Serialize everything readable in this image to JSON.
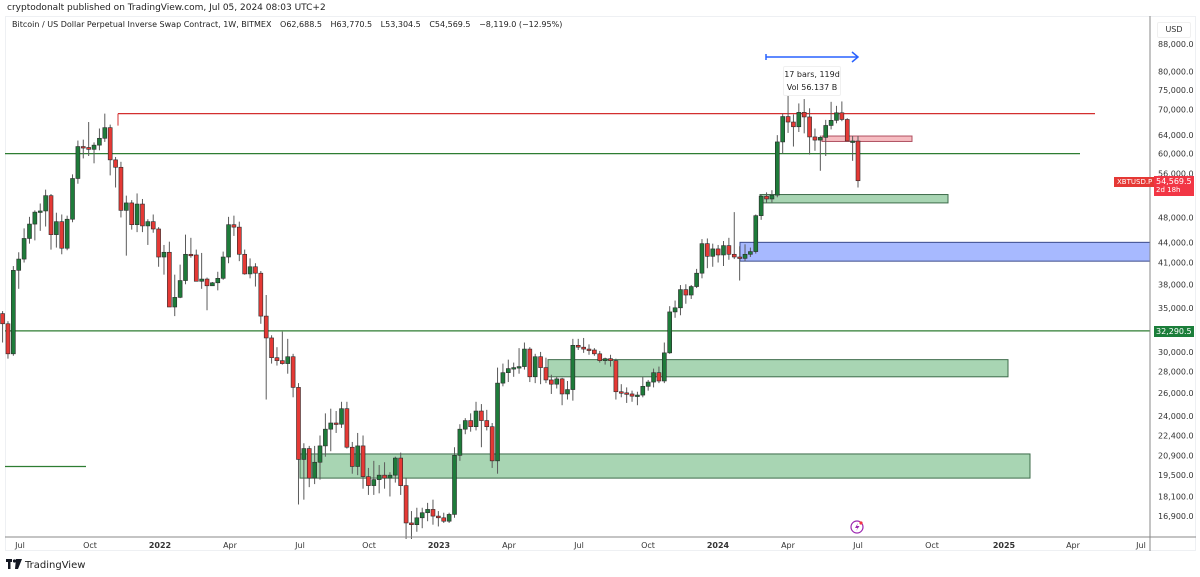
{
  "header": {
    "publish_line": "cryptodonalt published on TradingView.com, Jul 05, 2024 08:03 UTC+2"
  },
  "legend": {
    "title": "Bitcoin / US Dollar Perpetual Inverse Swap Contract, 1W, BITMEX",
    "open": "O62,688.5",
    "high": "H63,770.5",
    "low": "L53,304.5",
    "close": "C54,569.5",
    "change": "−8,119.0 (−12.95%)"
  },
  "price_axis": {
    "currency": "USD",
    "labels": [
      "88,000.0",
      "80,000.0",
      "75,000.0",
      "70,000.0",
      "64,000.0",
      "60,000.0",
      "56,000.0",
      "48,000.0",
      "44,000.0",
      "41,000.0",
      "38,000.0",
      "35,000.0",
      "30,000.0",
      "28,000.0",
      "26,000.0",
      "24,000.0",
      "22,400.0",
      "20,900.0",
      "19,500.0",
      "18,100.0",
      "16,900.0"
    ],
    "values": [
      88000,
      80000,
      75000,
      70000,
      64000,
      60000,
      56000,
      48000,
      44000,
      41000,
      38000,
      35000,
      30000,
      28000,
      26000,
      24000,
      22400,
      20900,
      19500,
      18100,
      16900
    ]
  },
  "time_axis": {
    "labels": [
      {
        "text": "Jul",
        "x": 20,
        "bold": false
      },
      {
        "text": "Oct",
        "x": 90,
        "bold": false
      },
      {
        "text": "2022",
        "x": 160,
        "bold": true
      },
      {
        "text": "Apr",
        "x": 230,
        "bold": false
      },
      {
        "text": "Jul",
        "x": 300,
        "bold": false
      },
      {
        "text": "Oct",
        "x": 369,
        "bold": false
      },
      {
        "text": "2023",
        "x": 439,
        "bold": true
      },
      {
        "text": "Apr",
        "x": 509,
        "bold": false
      },
      {
        "text": "Jul",
        "x": 579,
        "bold": false
      },
      {
        "text": "Oct",
        "x": 648,
        "bold": false
      },
      {
        "text": "2024",
        "x": 718,
        "bold": true
      },
      {
        "text": "Apr",
        "x": 788,
        "bold": false
      },
      {
        "text": "Jul",
        "x": 858,
        "bold": false
      },
      {
        "text": "Oct",
        "x": 932,
        "bold": false
      },
      {
        "text": "2025",
        "x": 1004,
        "bold": true
      },
      {
        "text": "Apr",
        "x": 1073,
        "bold": false
      },
      {
        "text": "Jul",
        "x": 1141,
        "bold": false
      }
    ]
  },
  "tags": {
    "symbol": "XBTUSD.P",
    "last_price": "54,569.5",
    "countdown": "2d 18h",
    "level_price": "32,290.5"
  },
  "measure_tooltip": {
    "line1": "17 bars, 119d",
    "line2": "Vol 56.137 B"
  },
  "brand": {
    "name": "TradingView"
  },
  "colors": {
    "up": "#1e7b3a",
    "down": "#e53935",
    "wick": "#555555",
    "resistance_line": "#d32f2f",
    "support_line": "#2e7d32",
    "green_zone": "#a5d6b0",
    "blue_zone": "#a7b9ff",
    "pink_zone": "#f4b6bb",
    "arrow": "#2962ff"
  },
  "chart_data": {
    "type": "candlestick",
    "title": "Bitcoin / US Dollar Perpetual Inverse Swap Contract, 1W, BITMEX",
    "xlabel": "",
    "ylabel": "USD",
    "y_scale": "log",
    "ylim": [
      16000,
      92000
    ],
    "timeframe": "1W",
    "x_start": "2021-06-28",
    "last_candle": {
      "open": 62688.5,
      "high": 63770.5,
      "low": 53304.5,
      "close": 54569.5
    },
    "candles": [
      [
        34500,
        36600,
        31800,
        35500
      ],
      [
        35500,
        35900,
        32700,
        34300
      ],
      [
        34300,
        34600,
        31000,
        33100
      ],
      [
        33100,
        33400,
        29300,
        29800
      ],
      [
        29800,
        40500,
        29600,
        39900
      ],
      [
        39900,
        42500,
        37400,
        41500
      ],
      [
        41500,
        46200,
        41000,
        44600
      ],
      [
        44600,
        48100,
        43800,
        46900
      ],
      [
        46900,
        49200,
        44300,
        48900
      ],
      [
        48900,
        50400,
        45800,
        49100
      ],
      [
        49100,
        52900,
        46500,
        51800
      ],
      [
        51800,
        52100,
        42900,
        45200
      ],
      [
        45200,
        48800,
        43200,
        47300
      ],
      [
        47300,
        48500,
        42200,
        43100
      ],
      [
        43100,
        48300,
        42800,
        47700
      ],
      [
        47700,
        55800,
        47200,
        55000
      ],
      [
        55000,
        62800,
        54000,
        61500
      ],
      [
        61500,
        63000,
        59000,
        61300
      ],
      [
        61300,
        67000,
        59500,
        60900
      ],
      [
        60900,
        62400,
        58000,
        61800
      ],
      [
        61800,
        65500,
        60700,
        63300
      ],
      [
        63300,
        69000,
        62500,
        65700
      ],
      [
        65700,
        66400,
        55600,
        58700
      ],
      [
        58700,
        59300,
        53300,
        57200
      ],
      [
        57200,
        58300,
        48000,
        49200
      ],
      [
        49200,
        51800,
        42000,
        50500
      ],
      [
        50500,
        51000,
        46000,
        46800
      ],
      [
        46800,
        52200,
        45600,
        50300
      ],
      [
        50300,
        51200,
        45600,
        46600
      ],
      [
        46600,
        47700,
        43600,
        47300
      ],
      [
        47300,
        48500,
        45500,
        46100
      ],
      [
        46100,
        46400,
        40400,
        41800
      ],
      [
        41800,
        43600,
        39300,
        42500
      ],
      [
        42500,
        44100,
        35600,
        35100
      ],
      [
        35100,
        39300,
        34000,
        36300
      ],
      [
        36300,
        40700,
        36200,
        38500
      ],
      [
        38500,
        45200,
        38000,
        42200
      ],
      [
        42200,
        44700,
        41700,
        42100
      ],
      [
        42100,
        42900,
        40000,
        38400
      ],
      [
        38400,
        42400,
        37400,
        38700
      ],
      [
        38700,
        38900,
        34700,
        37800
      ],
      [
        37800,
        38300,
        38000,
        38200
      ],
      [
        38200,
        39700,
        37200,
        38800
      ],
      [
        38800,
        42600,
        38600,
        41800
      ],
      [
        41800,
        48100,
        40900,
        46800
      ],
      [
        46800,
        48300,
        45000,
        46400
      ],
      [
        46400,
        47300,
        41200,
        42200
      ],
      [
        42200,
        42900,
        39300,
        39400
      ],
      [
        39400,
        41600,
        38800,
        40400
      ],
      [
        40400,
        40900,
        37700,
        39500
      ],
      [
        39500,
        39800,
        33100,
        34000
      ],
      [
        34000,
        36600,
        25400,
        31500
      ],
      [
        31500,
        31800,
        28800,
        29400
      ],
      [
        29400,
        30500,
        28600,
        29100
      ],
      [
        29100,
        32200,
        28700,
        28800
      ],
      [
        28800,
        31400,
        27800,
        29500
      ],
      [
        29500,
        29800,
        25600,
        26500
      ],
      [
        26500,
        26900,
        17600,
        20600
      ],
      [
        20600,
        21800,
        17900,
        21400
      ],
      [
        21400,
        21600,
        18700,
        19300
      ],
      [
        19300,
        21600,
        18900,
        20400
      ],
      [
        20400,
        22400,
        19200,
        21600
      ],
      [
        21600,
        24200,
        20800,
        22900
      ],
      [
        22900,
        24600,
        21200,
        23400
      ],
      [
        23400,
        24400,
        22600,
        23300
      ],
      [
        23300,
        25200,
        23000,
        24600
      ],
      [
        24600,
        25200,
        21400,
        21500
      ],
      [
        21500,
        21900,
        19600,
        20100
      ],
      [
        20100,
        22600,
        19500,
        21600
      ],
      [
        21600,
        22400,
        18600,
        19400
      ],
      [
        19400,
        20000,
        18200,
        18800
      ],
      [
        18800,
        20500,
        18200,
        19200
      ],
      [
        19200,
        20200,
        18300,
        19500
      ],
      [
        19500,
        20400,
        18600,
        19300
      ],
      [
        19300,
        19700,
        18100,
        19500
      ],
      [
        19500,
        20800,
        19000,
        20700
      ],
      [
        20700,
        21100,
        18200,
        18800
      ],
      [
        18800,
        19300,
        15600,
        16500
      ],
      [
        16500,
        17200,
        15600,
        16400
      ],
      [
        16400,
        17400,
        16000,
        16800
      ],
      [
        16800,
        17400,
        16200,
        17100
      ],
      [
        17100,
        17700,
        16600,
        17300
      ],
      [
        17300,
        17900,
        16400,
        16900
      ],
      [
        16900,
        17200,
        16300,
        16800
      ],
      [
        16800,
        17100,
        16500,
        16600
      ],
      [
        16600,
        17100,
        16500,
        17000
      ],
      [
        17000,
        21500,
        16800,
        20900
      ],
      [
        20900,
        23300,
        20500,
        22900
      ],
      [
        22900,
        23800,
        22500,
        23600
      ],
      [
        23600,
        24200,
        22700,
        23100
      ],
      [
        23100,
        25200,
        22800,
        24400
      ],
      [
        24400,
        25000,
        21500,
        23600
      ],
      [
        23600,
        24500,
        22800,
        23100
      ],
      [
        23100,
        23400,
        20000,
        20500
      ],
      [
        20500,
        28400,
        19600,
        26900
      ],
      [
        26900,
        28800,
        26600,
        27900
      ],
      [
        27900,
        29200,
        27000,
        28300
      ],
      [
        28300,
        28900,
        27500,
        28400
      ],
      [
        28400,
        30400,
        27800,
        28500
      ],
      [
        28500,
        31000,
        28200,
        30300
      ],
      [
        30300,
        30500,
        27000,
        27500
      ],
      [
        27500,
        29800,
        26900,
        29500
      ],
      [
        29500,
        30000,
        26800,
        28400
      ],
      [
        28400,
        29400,
        26900,
        27200
      ],
      [
        27200,
        27700,
        25900,
        26800
      ],
      [
        26800,
        27500,
        26400,
        27300
      ],
      [
        27300,
        27400,
        24900,
        25900
      ],
      [
        25900,
        27100,
        25400,
        26300
      ],
      [
        26300,
        31400,
        25300,
        30700
      ],
      [
        30700,
        31400,
        30200,
        30500
      ],
      [
        30500,
        31500,
        29900,
        30300
      ],
      [
        30300,
        30800,
        29700,
        30200
      ],
      [
        30200,
        30400,
        29600,
        29800
      ],
      [
        29800,
        30100,
        28900,
        29100
      ],
      [
        29100,
        29400,
        28700,
        29300
      ],
      [
        29300,
        29700,
        28500,
        29100
      ],
      [
        29100,
        29300,
        25400,
        26100
      ],
      [
        26100,
        26800,
        25600,
        26000
      ],
      [
        26000,
        26500,
        25100,
        25900
      ],
      [
        25900,
        26200,
        25200,
        25700
      ],
      [
        25700,
        26100,
        24900,
        25800
      ],
      [
        25800,
        27500,
        25600,
        26600
      ],
      [
        26600,
        27200,
        26200,
        27000
      ],
      [
        27000,
        28300,
        26500,
        27900
      ],
      [
        27900,
        28500,
        26900,
        27100
      ],
      [
        27100,
        31000,
        26900,
        29900
      ],
      [
        29900,
        35200,
        29800,
        34500
      ],
      [
        34500,
        35900,
        33800,
        35000
      ],
      [
        35000,
        37900,
        34100,
        37300
      ],
      [
        37300,
        38000,
        35500,
        36600
      ],
      [
        36600,
        37900,
        36100,
        37700
      ],
      [
        37700,
        40100,
        37500,
        39500
      ],
      [
        39500,
        44500,
        38800,
        43800
      ],
      [
        43800,
        44600,
        40200,
        41900
      ],
      [
        41900,
        43800,
        40400,
        43000
      ],
      [
        43000,
        43600,
        41000,
        42100
      ],
      [
        42100,
        44200,
        40500,
        43500
      ],
      [
        43500,
        44700,
        41400,
        42200
      ],
      [
        42200,
        48900,
        41500,
        41800
      ],
      [
        41800,
        43400,
        38500,
        41600
      ],
      [
        41600,
        43700,
        41200,
        42200
      ],
      [
        42200,
        43200,
        41800,
        42600
      ],
      [
        42600,
        48500,
        42300,
        48300
      ],
      [
        48300,
        52000,
        47600,
        51700
      ],
      [
        51700,
        52400,
        50500,
        51200
      ],
      [
        51200,
        52800,
        50600,
        51900
      ],
      [
        51900,
        64000,
        51500,
        62500
      ],
      [
        62500,
        69000,
        60000,
        68300
      ],
      [
        68300,
        73700,
        64500,
        67000
      ],
      [
        67000,
        68800,
        61500,
        65900
      ],
      [
        65900,
        71500,
        64700,
        69300
      ],
      [
        69300,
        72600,
        64400,
        68200
      ],
      [
        68200,
        70300,
        59800,
        63600
      ],
      [
        63600,
        65500,
        60600,
        62900
      ],
      [
        62900,
        63900,
        56500,
        63500
      ],
      [
        63500,
        67500,
        59500,
        66200
      ],
      [
        66200,
        71900,
        65300,
        67400
      ],
      [
        67400,
        70900,
        66700,
        69200
      ],
      [
        69200,
        72000,
        67200,
        67600
      ],
      [
        67600,
        67900,
        62900,
        62700
      ],
      [
        62700,
        63800,
        58500,
        62700
      ],
      [
        62688.5,
        63770.5,
        53304.5,
        54569.5
      ]
    ],
    "annotations": {
      "horizontal_lines": [
        {
          "price": 69000,
          "color": "red",
          "x_from": 118,
          "x_to": 1095
        },
        {
          "price": 60000,
          "color": "green",
          "x_from": 5,
          "x_to": 1080
        },
        {
          "price": 32290.5,
          "color": "green",
          "x_from": 5,
          "x_to": 1150,
          "label": "32,290.5"
        },
        {
          "price": 20100,
          "color": "green",
          "x_from": 5,
          "x_to": 86
        }
      ],
      "zones": [
        {
          "type": "demand",
          "color": "green",
          "top": 52000,
          "bottom": 50500,
          "x_from": 760,
          "x_to": 948
        },
        {
          "type": "demand",
          "color": "blue",
          "top": 44000,
          "bottom": 41200,
          "x_from": 740,
          "x_to": 1150
        },
        {
          "type": "supply",
          "color": "pink",
          "top": 63800,
          "bottom": 62600,
          "x_from": 822,
          "x_to": 912
        },
        {
          "type": "demand",
          "color": "green",
          "top": 29200,
          "bottom": 27500,
          "x_from": 548,
          "x_to": 1008
        },
        {
          "type": "demand",
          "color": "green",
          "top": 21000,
          "bottom": 19300,
          "x_from": 300,
          "x_to": 1030
        }
      ],
      "measure": {
        "text": "17 bars, 119d",
        "volume": "Vol 56.137 B",
        "arrow_from_x": 766,
        "arrow_to_x": 858,
        "y": 57
      }
    }
  }
}
